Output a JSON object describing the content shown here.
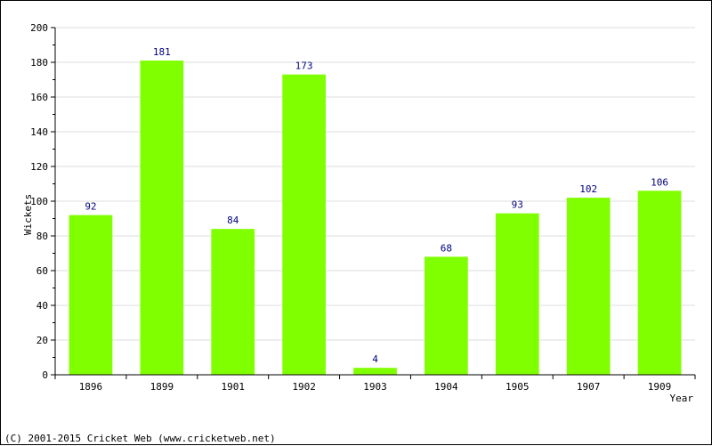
{
  "colors": {
    "bar": "#80ff00",
    "value_label": "#000080",
    "grid": "#dcdcdc",
    "axis": "#000000"
  },
  "chart_data": {
    "type": "bar",
    "title": "",
    "xlabel": "Year",
    "ylabel": "Wickets",
    "ylim": [
      0,
      200
    ],
    "yticks": [
      0,
      20,
      40,
      60,
      80,
      100,
      120,
      140,
      160,
      180,
      200
    ],
    "grid": true,
    "categories": [
      "1896",
      "1899",
      "1901",
      "1902",
      "1903",
      "1904",
      "1905",
      "1907",
      "1909"
    ],
    "values": [
      92,
      181,
      84,
      173,
      4,
      68,
      93,
      102,
      106
    ]
  },
  "footer": {
    "copyright": "(C) 2001-2015 Cricket Web (www.cricketweb.net)"
  }
}
